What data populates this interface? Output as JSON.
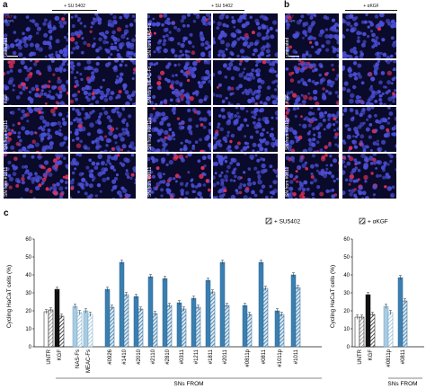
{
  "panel_a": {
    "letter": "a",
    "header_left": "+ SU 5402",
    "header_right": "+ SU 5402",
    "stain_ki67": "Ki67",
    "stain_dapi": "DAPI",
    "rows_left": [
      "untreated",
      "KGF",
      "SN from #0311",
      "SN from #1811"
    ],
    "rows_right": [
      "SN from NAS-Fs",
      "SN from MEAC-Fs",
      "SN from #0811p",
      "SN from #0811"
    ]
  },
  "panel_b": {
    "letter": "b",
    "header": "+ αKGF",
    "stain_ki67": "Ki67",
    "stain_dapi": "DAPI",
    "rows": [
      "untreated",
      "KGF",
      "SN from #0811p",
      "SN from #0811"
    ]
  },
  "colors": {
    "untr": "#ffffff",
    "kgf": "#111111",
    "normal_fib": "#a9cce3",
    "tumor_fib": "#3b7fb1",
    "ki67": "#e0305a",
    "dapi": "#4b4fd6",
    "micro_bg": "#0a0a2a"
  },
  "chart_data": [
    {
      "type": "bar",
      "panel": "c",
      "ylabel": "Cycling HaCaT cells (%)",
      "ylim": [
        0,
        60
      ],
      "yticks": [
        0,
        10,
        20,
        30,
        40,
        50,
        60
      ],
      "legend": "+ SU5402",
      "xgroup_label": "SNs FROM",
      "categories": [
        "UNTR",
        "KGF",
        "NAS-Fs",
        "MEAC-Fs",
        "#0926",
        "#1410",
        "#2010",
        "#2110",
        "#2810",
        "#0311",
        "#1211",
        "#1811",
        "#2011",
        "#0811p",
        "#0811",
        "#1011p",
        "#1011"
      ],
      "groups": [
        "control",
        "control",
        "normal",
        "normal",
        "tumor",
        "tumor",
        "tumor",
        "tumor",
        "tumor",
        "tumor",
        "tumor",
        "tumor",
        "tumor",
        "tumor",
        "tumor",
        "tumor",
        "tumor"
      ],
      "series": [
        {
          "values": [
            19.5,
            32,
            22.5,
            20,
            32,
            47,
            28,
            39,
            38,
            24.5,
            27,
            37,
            47,
            23,
            47,
            20,
            40
          ]
        },
        {
          "values": [
            20.5,
            17,
            19,
            18,
            22,
            29,
            21,
            18.5,
            23,
            21,
            22,
            30.5,
            23,
            18,
            32.5,
            18,
            33
          ]
        }
      ]
    },
    {
      "type": "bar",
      "panel": "d",
      "ylabel": "Cycling HaCaT cells (%)",
      "ylim": [
        0,
        60
      ],
      "yticks": [
        0,
        10,
        20,
        30,
        40,
        50,
        60
      ],
      "legend": "+ αKGF",
      "xgroup_label": "SNs FROM",
      "categories": [
        "UNTR",
        "KGF",
        "#0811p",
        "#0811"
      ],
      "groups": [
        "control",
        "control",
        "normal",
        "tumor"
      ],
      "series": [
        {
          "values": [
            16.5,
            29,
            22.5,
            38.5
          ]
        },
        {
          "values": [
            16.5,
            18,
            19,
            25.5
          ]
        }
      ]
    }
  ]
}
